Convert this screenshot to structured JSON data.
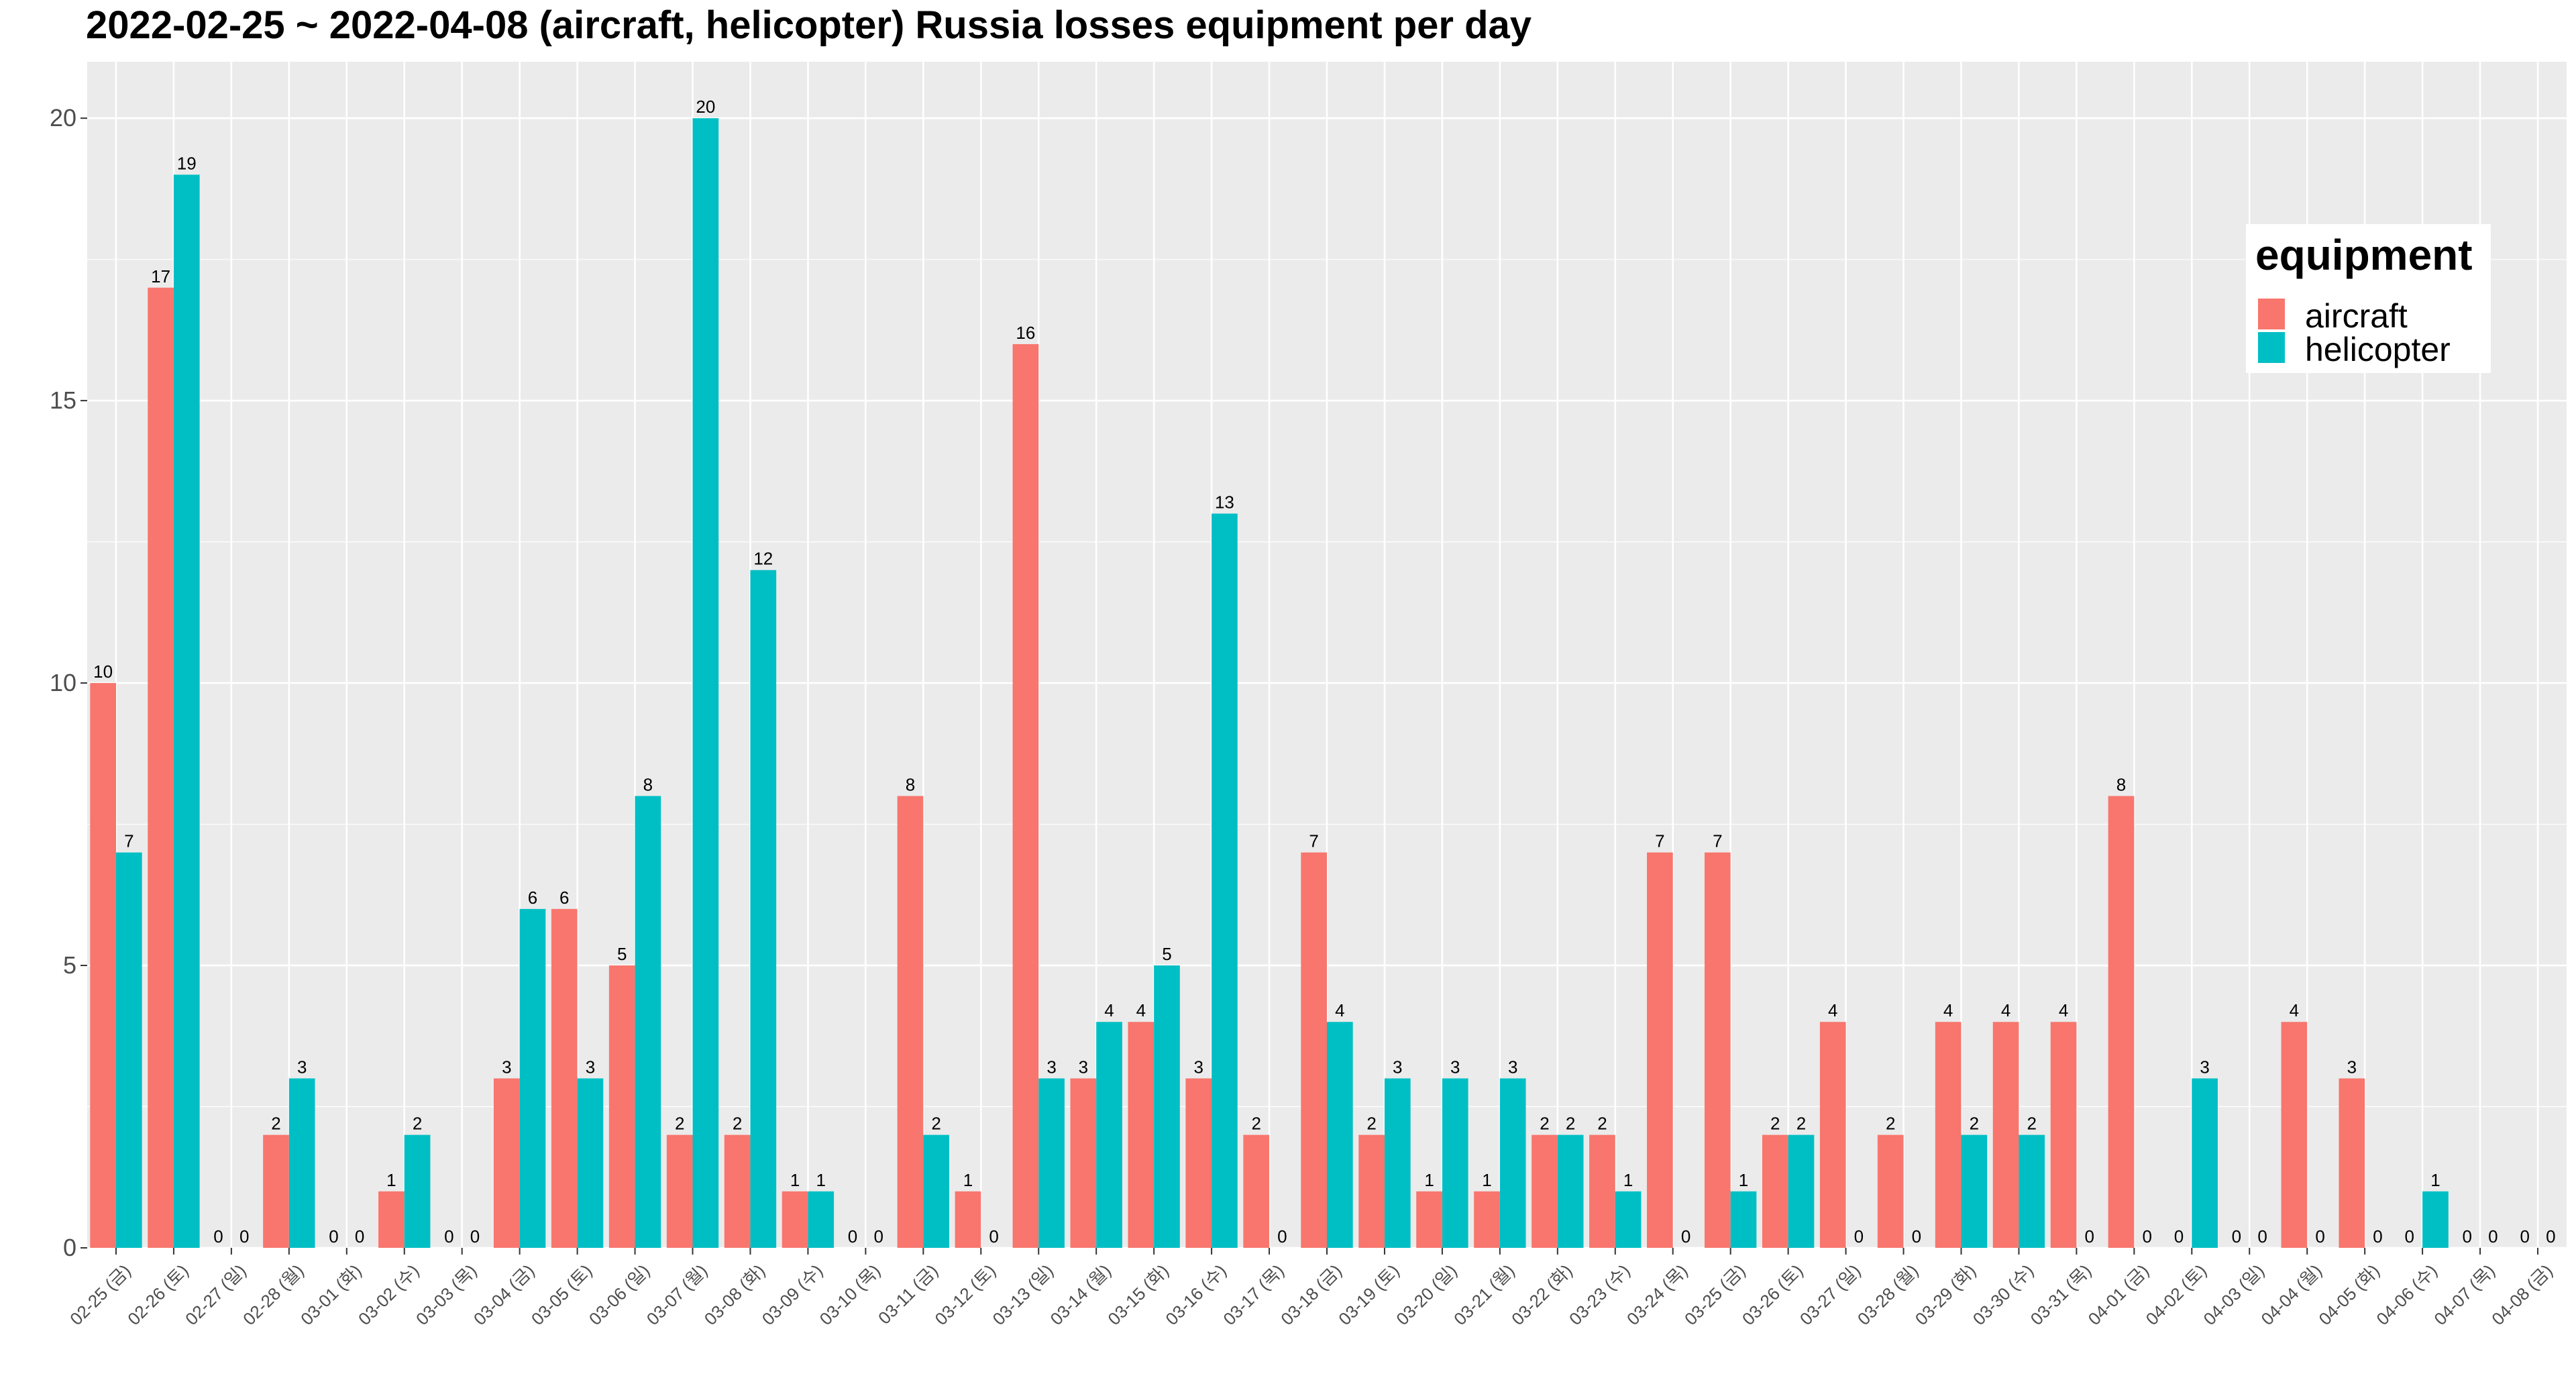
{
  "chart_data": {
    "type": "bar",
    "title": "2022-02-25 ~ 2022-04-08 (aircraft, helicopter) Russia losses equipment per day",
    "xlabel": "",
    "ylabel": "",
    "ylim": [
      0,
      21
    ],
    "y_ticks": [
      "0",
      "5",
      "10",
      "15",
      "20"
    ],
    "grid": true,
    "legend": {
      "title": "equipment",
      "position": "top-right",
      "entries": [
        "aircraft",
        "helicopter"
      ]
    },
    "colors": {
      "aircraft": "#F8766D",
      "helicopter": "#00BFC4",
      "panel": "#EBEBEB",
      "grid": "#FFFFFF"
    },
    "categories": [
      "02-25 (금)",
      "02-26 (토)",
      "02-27 (일)",
      "02-28 (월)",
      "03-01 (화)",
      "03-02 (수)",
      "03-03 (목)",
      "03-04 (금)",
      "03-05 (토)",
      "03-06 (일)",
      "03-07 (월)",
      "03-08 (화)",
      "03-09 (수)",
      "03-10 (목)",
      "03-11 (금)",
      "03-12 (토)",
      "03-13 (일)",
      "03-14 (월)",
      "03-15 (화)",
      "03-16 (수)",
      "03-17 (목)",
      "03-18 (금)",
      "03-19 (토)",
      "03-20 (일)",
      "03-21 (월)",
      "03-22 (화)",
      "03-23 (수)",
      "03-24 (목)",
      "03-25 (금)",
      "03-26 (토)",
      "03-27 (일)",
      "03-28 (월)",
      "03-29 (화)",
      "03-30 (수)",
      "03-31 (목)",
      "04-01 (금)",
      "04-02 (토)",
      "04-03 (일)",
      "04-04 (월)",
      "04-05 (화)",
      "04-06 (수)",
      "04-07 (목)",
      "04-08 (금)"
    ],
    "series": [
      {
        "name": "aircraft",
        "values": [
          10,
          17,
          0,
          2,
          0,
          1,
          0,
          3,
          6,
          5,
          2,
          2,
          1,
          0,
          8,
          1,
          16,
          3,
          4,
          3,
          2,
          7,
          2,
          1,
          1,
          2,
          2,
          7,
          7,
          2,
          4,
          2,
          4,
          4,
          4,
          8,
          0,
          0,
          4,
          3,
          0,
          0,
          0
        ]
      },
      {
        "name": "helicopter",
        "values": [
          7,
          19,
          0,
          3,
          0,
          2,
          0,
          6,
          3,
          8,
          20,
          12,
          1,
          0,
          2,
          0,
          3,
          4,
          5,
          13,
          0,
          4,
          3,
          3,
          3,
          2,
          1,
          0,
          1,
          2,
          0,
          0,
          2,
          2,
          0,
          0,
          3,
          0,
          0,
          0,
          1,
          0,
          0
        ]
      }
    ]
  }
}
